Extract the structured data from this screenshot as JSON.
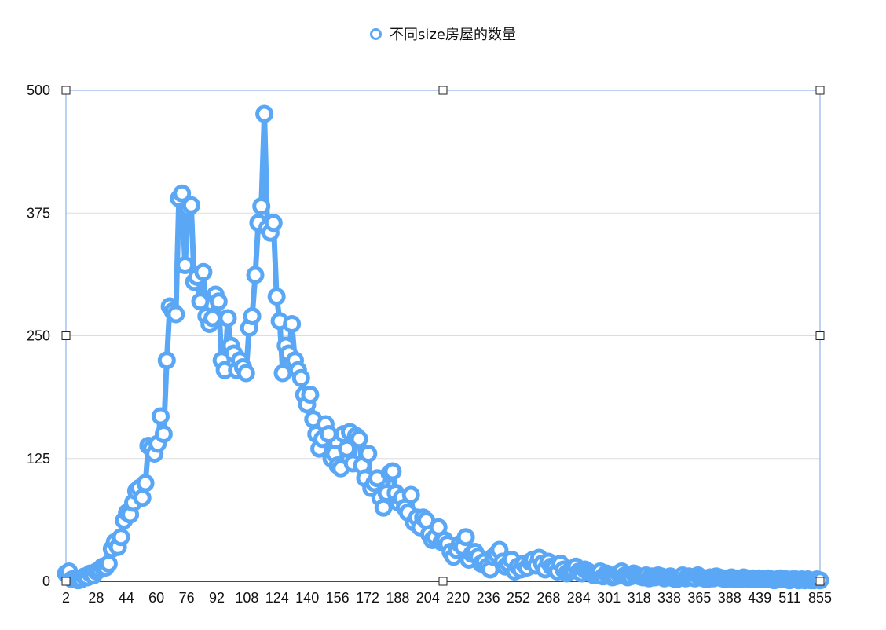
{
  "legend": {
    "label": "不同size房屋的数量"
  },
  "colors": {
    "series": "#5aa7f6",
    "frame": "#8fb0ea",
    "grid": "#dddddd",
    "axis": "#1f4e99"
  },
  "chart_data": {
    "type": "line",
    "title": "",
    "xlabel": "",
    "ylabel": "",
    "ylim": [
      0,
      500
    ],
    "y_ticks": [
      0,
      125,
      250,
      375,
      500
    ],
    "x_tick_labels": [
      "2",
      "28",
      "44",
      "60",
      "76",
      "92",
      "108",
      "124",
      "140",
      "156",
      "172",
      "188",
      "204",
      "220",
      "236",
      "252",
      "268",
      "284",
      "301",
      "318",
      "338",
      "365",
      "388",
      "439",
      "511",
      "855"
    ],
    "grid": true,
    "legend_position": "top-center",
    "series": [
      {
        "name": "不同size房屋的数量",
        "values": [
          8,
          10,
          2,
          3,
          1,
          2,
          5,
          4,
          8,
          6,
          10,
          12,
          15,
          14,
          18,
          33,
          40,
          35,
          45,
          62,
          70,
          68,
          80,
          92,
          95,
          85,
          100,
          138,
          135,
          130,
          140,
          168,
          150,
          225,
          280,
          275,
          272,
          390,
          395,
          322,
          380,
          383,
          305,
          310,
          285,
          315,
          270,
          262,
          268,
          292,
          285,
          225,
          215,
          268,
          240,
          232,
          215,
          225,
          218,
          212,
          258,
          270,
          312,
          365,
          382,
          476,
          360,
          355,
          365,
          290,
          265,
          212,
          240,
          232,
          262,
          225,
          215,
          207,
          190,
          180,
          190,
          165,
          150,
          135,
          145,
          160,
          150,
          125,
          130,
          118,
          115,
          150,
          135,
          152,
          120,
          148,
          145,
          118,
          105,
          130,
          95,
          100,
          105,
          85,
          75,
          90,
          110,
          112,
          90,
          80,
          85,
          75,
          70,
          88,
          60,
          65,
          55,
          65,
          62,
          48,
          42,
          45,
          55,
          40,
          42,
          38,
          30,
          25,
          32,
          38,
          35,
          45,
          22,
          28,
          30,
          25,
          18,
          20,
          15,
          12,
          25,
          28,
          32,
          20,
          15,
          18,
          22,
          10,
          15,
          12,
          18,
          14,
          20,
          22,
          16,
          24,
          18,
          12,
          20,
          15,
          14,
          10,
          18,
          12,
          8,
          10,
          12,
          15,
          10,
          8,
          12,
          10,
          8,
          6,
          8,
          10,
          5,
          8,
          6,
          4,
          5,
          8,
          10,
          6,
          4,
          5,
          8,
          6,
          5,
          4,
          6,
          3,
          5,
          4,
          6,
          5,
          3,
          4,
          5,
          3,
          2,
          4,
          6,
          3,
          5,
          4,
          3,
          6,
          4,
          3,
          2,
          4,
          3,
          5,
          4,
          3,
          2,
          3,
          4,
          2,
          3,
          2,
          4,
          3,
          2,
          3,
          2,
          3,
          2,
          2,
          3,
          2,
          1,
          2,
          3,
          2,
          2,
          1,
          2,
          2,
          1,
          2,
          1,
          2,
          1,
          1,
          2,
          1
        ]
      }
    ]
  }
}
